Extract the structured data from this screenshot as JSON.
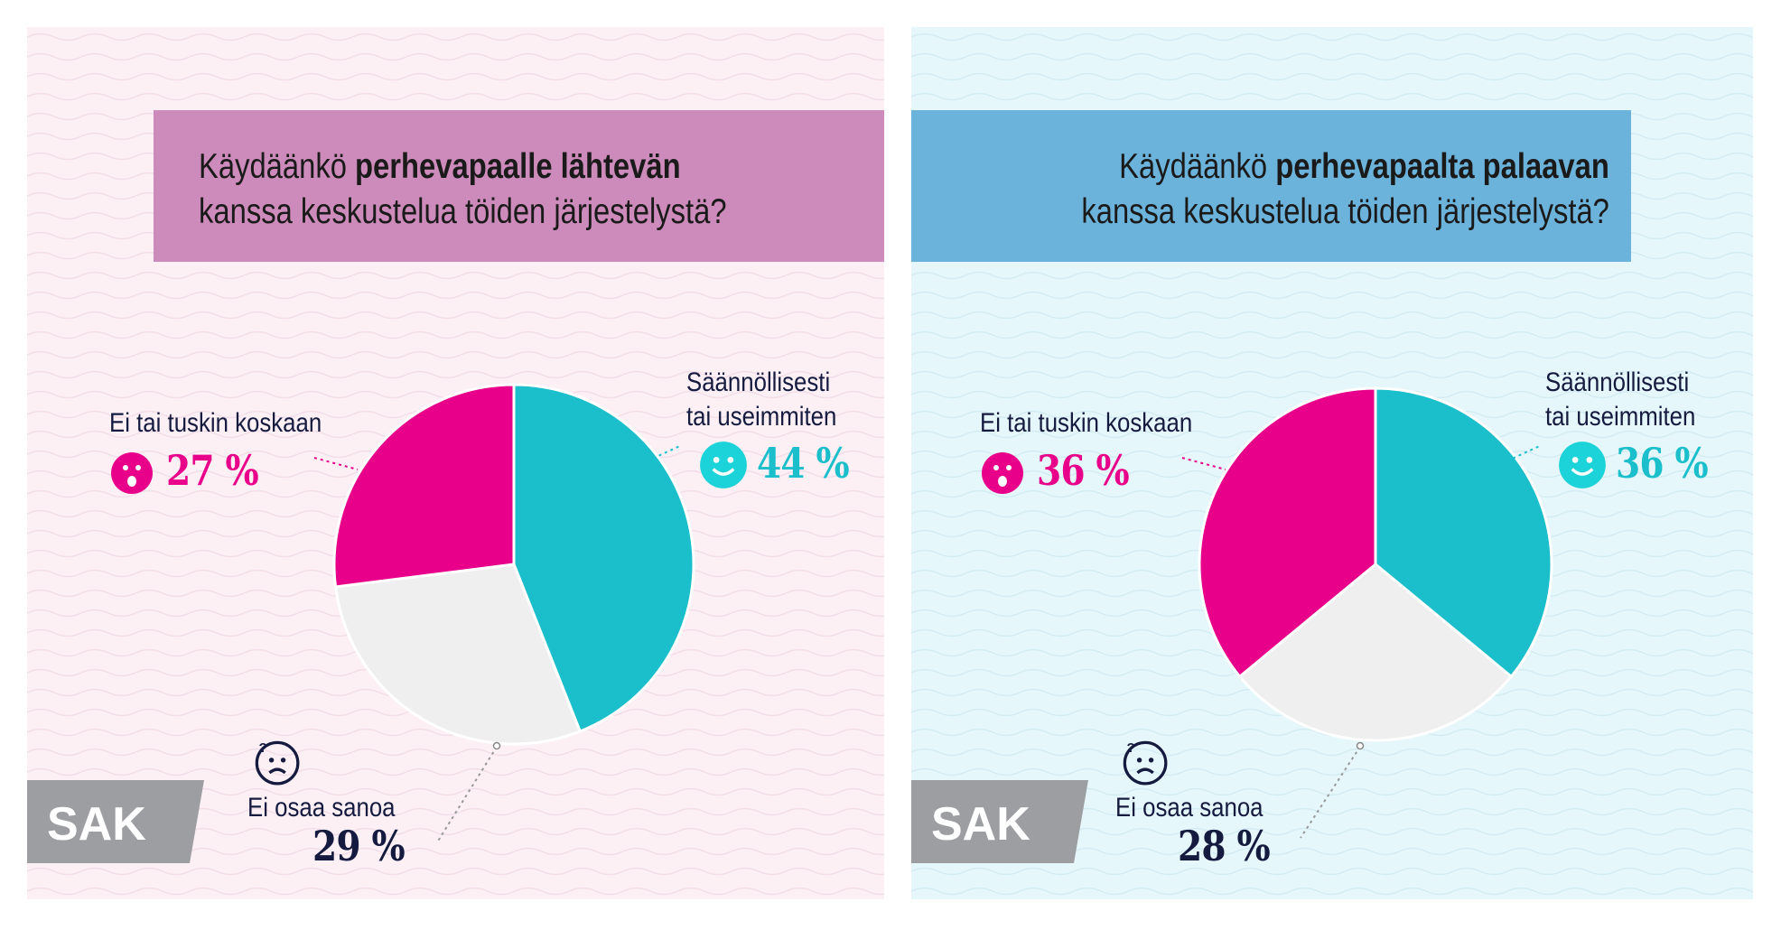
{
  "colors": {
    "pink": "#e8008a",
    "teal": "#1bbfcb",
    "gray": "#efefef",
    "navy": "#151a3f",
    "pink_panel": "#fcf0f5",
    "blue_panel": "#e6f7fb",
    "pink_title": "#cd8bbb",
    "blue_title": "#6cb3dc",
    "logo": "#9d9ea2"
  },
  "logo_text": "SAK",
  "chart_data": [
    {
      "type": "pie",
      "title_normal_1": "Käydäänkö ",
      "title_bold": "perhevapaalle lähtevän",
      "title_line2": "kanssa keskustelua töiden järjestelystä?",
      "slices": [
        {
          "label_1": "Säännöllisesti",
          "label_2": "tai useimmiten",
          "value": 44,
          "display": "44 %",
          "color": "#1bbfcb",
          "icon": "smile-icon"
        },
        {
          "label_1": "Ei osaa sanoa",
          "label_2": "",
          "value": 29,
          "display": "29 %",
          "color": "#efefef",
          "icon": "confused-face-icon"
        },
        {
          "label_1": "Ei tai tuskin koskaan",
          "label_2": "",
          "value": 27,
          "display": "27 %",
          "color": "#e8008a",
          "icon": "shocked-face-icon"
        }
      ]
    },
    {
      "type": "pie",
      "title_normal_1": "Käydäänkö ",
      "title_bold": "perhevapaalta palaavan",
      "title_line2": "kanssa keskustelua töiden järjestelystä?",
      "slices": [
        {
          "label_1": "Säännöllisesti",
          "label_2": "tai useimmiten",
          "value": 36,
          "display": "36 %",
          "color": "#1bbfcb",
          "icon": "smile-icon"
        },
        {
          "label_1": "Ei osaa sanoa",
          "label_2": "",
          "value": 28,
          "display": "28 %",
          "color": "#efefef",
          "icon": "confused-face-icon"
        },
        {
          "label_1": "Ei tai tuskin koskaan",
          "label_2": "",
          "value": 36,
          "display": "36 %",
          "color": "#e8008a",
          "icon": "shocked-face-icon"
        }
      ]
    }
  ]
}
